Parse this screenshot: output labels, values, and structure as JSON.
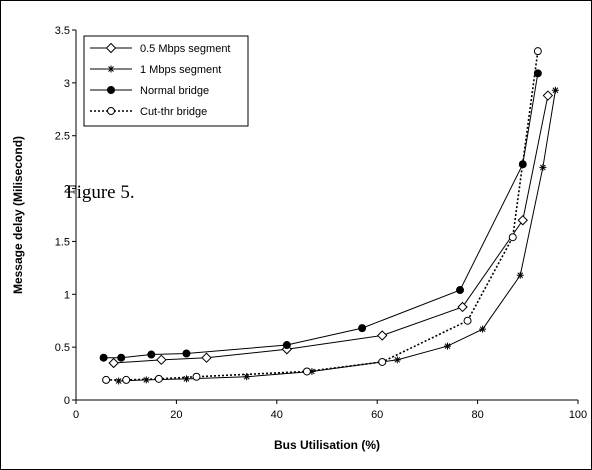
{
  "chart_data": {
    "type": "line",
    "title": "",
    "xlabel": "Bus Utilisation (%)",
    "ylabel": "Message delay (Milisecond)",
    "xlim": [
      0,
      100
    ],
    "ylim": [
      0,
      3.5
    ],
    "x_ticks": [
      "0",
      "20",
      "40",
      "60",
      "80",
      "100"
    ],
    "y_ticks": [
      "0",
      "0.5",
      "1",
      "1.5",
      "2",
      "2.5",
      "3",
      "3.5"
    ],
    "grid": false,
    "legend_position": "top-left",
    "annotation": "Figure 5.",
    "series": [
      {
        "name": "0.5 Mbps segment",
        "marker": "diamond-open",
        "line_style": "solid",
        "x": [
          7.5,
          17,
          26,
          42,
          61,
          77,
          89,
          94
        ],
        "y": [
          0.35,
          0.38,
          0.4,
          0.48,
          0.61,
          0.88,
          1.7,
          2.88
        ]
      },
      {
        "name": "1 Mbps segment",
        "marker": "asterisk",
        "line_style": "solid",
        "x": [
          8.5,
          14,
          22,
          34,
          47,
          64,
          74,
          81,
          88.5,
          93,
          95.5
        ],
        "y": [
          0.18,
          0.19,
          0.2,
          0.22,
          0.27,
          0.38,
          0.51,
          0.67,
          1.18,
          2.2,
          2.93
        ]
      },
      {
        "name": "Normal bridge",
        "marker": "circle-filled",
        "line_style": "solid",
        "x": [
          5.5,
          9,
          15,
          22,
          42,
          57,
          76.5,
          89,
          92
        ],
        "y": [
          0.4,
          0.4,
          0.43,
          0.44,
          0.52,
          0.68,
          1.04,
          2.23,
          3.09
        ]
      },
      {
        "name": "Cut-thr bridge",
        "marker": "circle-open",
        "line_style": "dotted",
        "x": [
          6,
          10,
          16.5,
          24,
          46,
          61,
          78,
          87,
          92
        ],
        "y": [
          0.19,
          0.19,
          0.2,
          0.22,
          0.27,
          0.36,
          0.75,
          1.54,
          3.3
        ]
      }
    ]
  }
}
